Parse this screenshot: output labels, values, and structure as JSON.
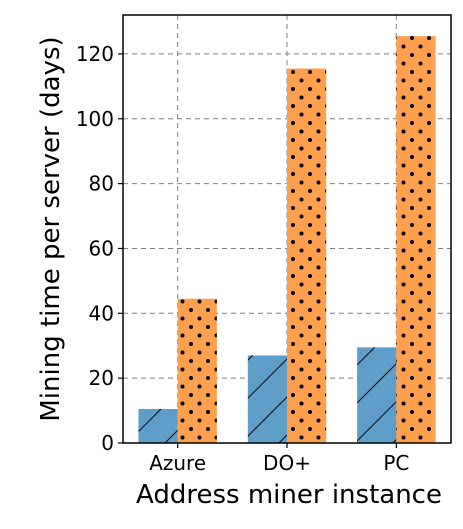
{
  "chart_data": {
    "type": "bar",
    "xlabel": "Address miner instance",
    "ylabel": "Mining time per server (days)",
    "categories": [
      "Azure",
      "DO+",
      "PC"
    ],
    "series": [
      {
        "values": [
          10.5,
          27.0,
          29.5
        ],
        "color": "#5f9ec9",
        "pattern": "hatch-diagonal"
      },
      {
        "values": [
          44.5,
          115.5,
          125.5
        ],
        "color": "#ffa04f",
        "pattern": "dots"
      }
    ],
    "ylim": [
      0,
      132
    ],
    "yticks": [
      0,
      20,
      40,
      60,
      80,
      100,
      120
    ],
    "grid": true,
    "grid_style": "dashed"
  }
}
